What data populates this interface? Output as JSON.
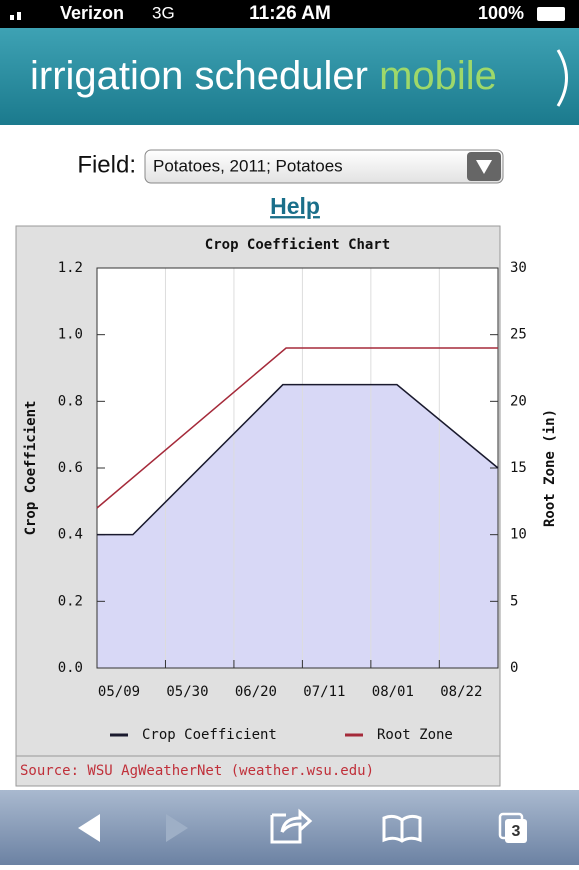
{
  "status_bar": {
    "carrier": "Verizon",
    "network": "3G",
    "time": "11:26 AM",
    "battery": "100%"
  },
  "header": {
    "title": "irrigation scheduler",
    "title_accent": "mobile"
  },
  "form": {
    "label": "Field:",
    "selected": "Potatoes, 2011; Potatoes",
    "help": "Help"
  },
  "chart_data": {
    "type": "line",
    "title": "Crop Coefficient Chart",
    "y_label": "Crop Coefficient",
    "y2_label": "Root Zone (in)",
    "xlim": [
      "05/09",
      "09/09"
    ],
    "xticks": [
      "05/09",
      "05/30",
      "06/20",
      "07/11",
      "08/01",
      "08/22"
    ],
    "ylim": [
      0,
      1.2
    ],
    "yticks": [
      {
        "value": 0,
        "label": "0.0"
      },
      0.2,
      0.4,
      0.6,
      0.8,
      {
        "value": 1,
        "label": "1.0"
      },
      1.2
    ],
    "y2lim": [
      0,
      30
    ],
    "y2ticks": [
      0,
      5,
      10,
      15,
      20,
      25,
      30
    ],
    "grid": true,
    "area_color": "#d8d8f6",
    "series": [
      {
        "name": "Crop Coefficient",
        "color": "#1a1a2e",
        "x": [
          "05/09",
          "05/20",
          "07/05",
          "08/09",
          "09/09"
        ],
        "values": [
          0.4,
          0.4,
          0.85,
          0.85,
          0.6
        ]
      },
      {
        "name": "Root Zone",
        "color": "#a52a3a",
        "axis": "y2",
        "x": [
          "05/09",
          "07/06",
          "09/09"
        ],
        "values": [
          12,
          24,
          24
        ]
      }
    ],
    "source": "Source: WSU AgWeatherNet (weather.wsu.edu)"
  },
  "toolbar": {
    "tabs": "3"
  }
}
